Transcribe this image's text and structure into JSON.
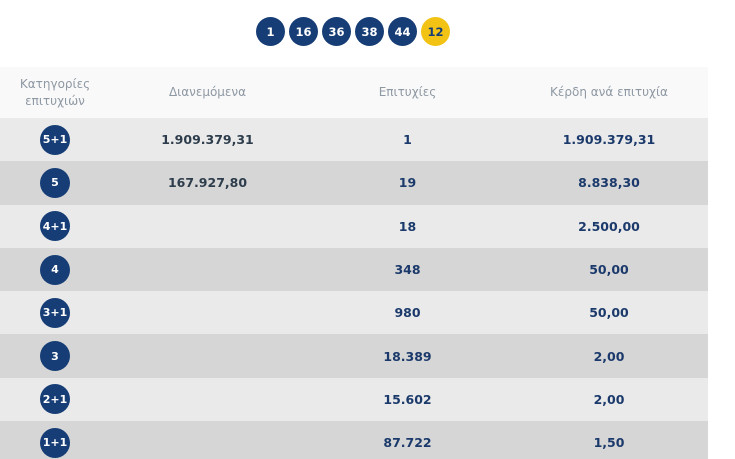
{
  "winning_numbers": {
    "title": "",
    "main": [
      "1",
      "16",
      "36",
      "38",
      "44"
    ],
    "joker": "12"
  },
  "table": {
    "headers": {
      "category": "Κατηγορίες επιτυχιών",
      "distributed": "Διανεμόμενα",
      "winners": "Επιτυχίες",
      "prize": "Κέρδη ανά επιτυχία"
    },
    "rows": [
      {
        "category": "5+1",
        "distributed": "1.909.379,31",
        "winners": "1",
        "prize": "1.909.379,31"
      },
      {
        "category": "5",
        "distributed": "167.927,80",
        "winners": "19",
        "prize": "8.838,30"
      },
      {
        "category": "4+1",
        "distributed": "",
        "winners": "18",
        "prize": "2.500,00"
      },
      {
        "category": "4",
        "distributed": "",
        "winners": "348",
        "prize": "50,00"
      },
      {
        "category": "3+1",
        "distributed": "",
        "winners": "980",
        "prize": "50,00"
      },
      {
        "category": "3",
        "distributed": "",
        "winners": "18.389",
        "prize": "2,00"
      },
      {
        "category": "2+1",
        "distributed": "",
        "winners": "15.602",
        "prize": "2,00"
      },
      {
        "category": "1+1",
        "distributed": "",
        "winners": "87.722",
        "prize": "1,50"
      }
    ]
  },
  "colors": {
    "ball": "#163d75",
    "joker": "#f2c315",
    "row_light": "#eaeaea",
    "row_dark": "#d6d6d6"
  }
}
